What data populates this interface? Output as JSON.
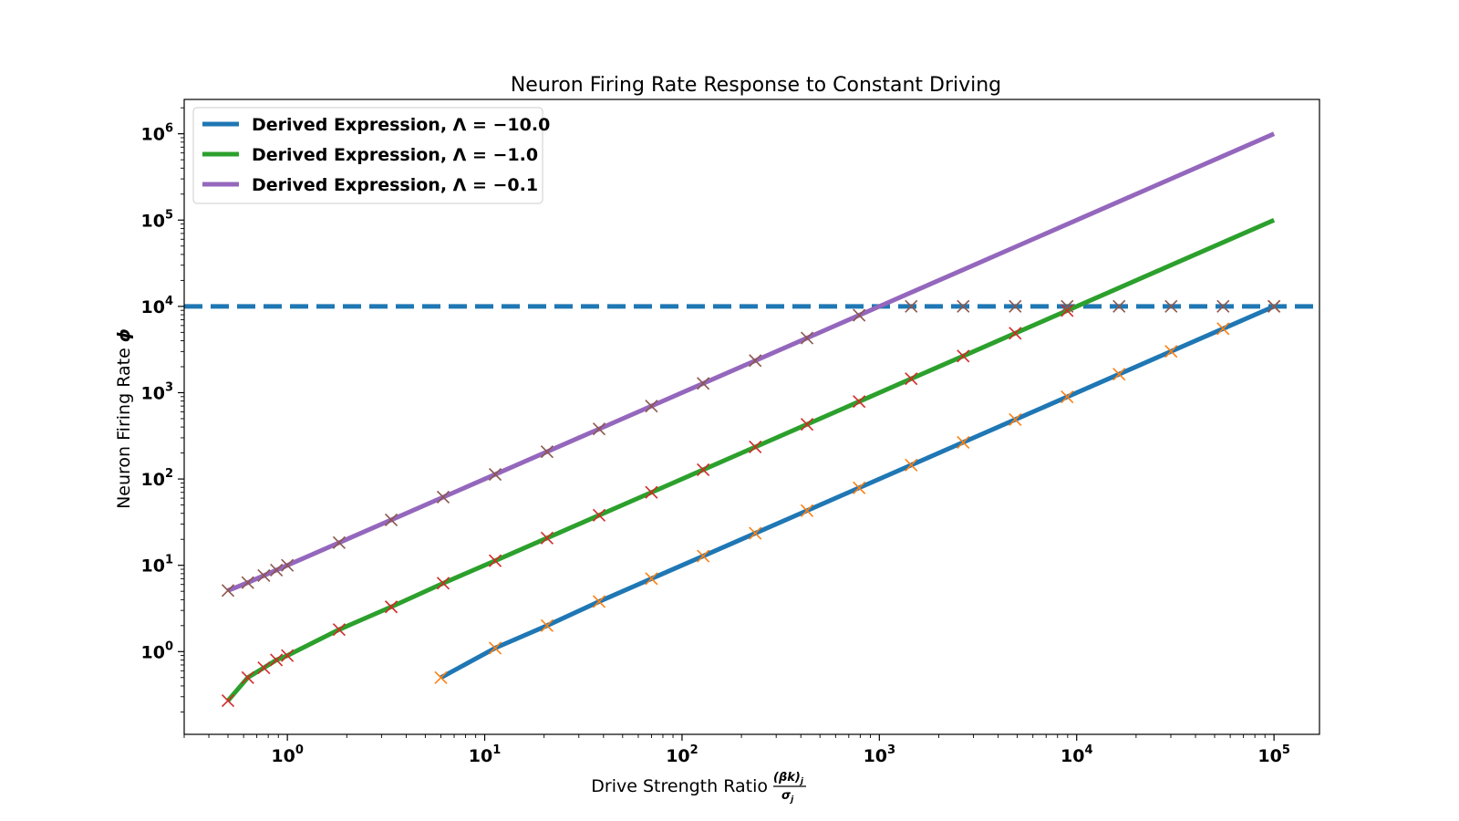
{
  "chart_data": {
    "type": "line",
    "title": "Neuron Firing Rate Response to Constant Driving",
    "xlabel": "Drive Strength Ratio",
    "xlabel_fraction": {
      "numerator": "(βk)",
      "numerator_sub": "j",
      "denominator": "σ",
      "denominator_sub": "j"
    },
    "ylabel": "Neuron Firing Rate",
    "ylabel_symbol": "ϕ",
    "xscale": "log",
    "yscale": "log",
    "xlim": [
      0.3,
      170000
    ],
    "ylim": [
      0.11,
      2500000
    ],
    "xticks": [
      {
        "base": "10",
        "exp": "0",
        "value": 1
      },
      {
        "base": "10",
        "exp": "1",
        "value": 10
      },
      {
        "base": "10",
        "exp": "2",
        "value": 100
      },
      {
        "base": "10",
        "exp": "3",
        "value": 1000
      },
      {
        "base": "10",
        "exp": "4",
        "value": 10000
      },
      {
        "base": "10",
        "exp": "5",
        "value": 100000
      }
    ],
    "yticks": [
      {
        "base": "10",
        "exp": "0",
        "value": 1
      },
      {
        "base": "10",
        "exp": "1",
        "value": 10
      },
      {
        "base": "10",
        "exp": "2",
        "value": 100
      },
      {
        "base": "10",
        "exp": "3",
        "value": 1000
      },
      {
        "base": "10",
        "exp": "4",
        "value": 10000
      },
      {
        "base": "10",
        "exp": "5",
        "value": 100000
      },
      {
        "base": "10",
        "exp": "6",
        "value": 1000000
      }
    ],
    "legend_position": "upper-left",
    "grid": false,
    "threshold_line": {
      "y": 10000,
      "style": "dashed",
      "color": "#1f77b4"
    },
    "series": [
      {
        "name": "Derived Expression, Λ = −10.0",
        "color": "#1f77b4",
        "marker_color": "#ff7f0e",
        "points": [
          [
            6,
            0.5
          ],
          [
            11.3,
            1.1
          ],
          [
            20.7,
            2.0
          ],
          [
            38,
            3.8
          ],
          [
            70,
            7.0
          ],
          [
            128,
            12.8
          ],
          [
            235,
            23.5
          ],
          [
            430,
            43
          ],
          [
            790,
            79
          ],
          [
            1450,
            145
          ],
          [
            2660,
            266
          ],
          [
            4880,
            488
          ],
          [
            8950,
            895
          ],
          [
            16400,
            1640
          ],
          [
            30100,
            3010
          ],
          [
            55200,
            5520
          ],
          [
            100000,
            10000
          ]
        ],
        "marker_points": [
          [
            6,
            0.5
          ],
          [
            11.3,
            1.1
          ],
          [
            20.7,
            2.0
          ],
          [
            38,
            3.8
          ],
          [
            70,
            7.0
          ],
          [
            128,
            12.8
          ],
          [
            235,
            23.5
          ],
          [
            430,
            43
          ],
          [
            790,
            79
          ],
          [
            1450,
            145
          ],
          [
            2660,
            266
          ],
          [
            4880,
            488
          ],
          [
            8950,
            895
          ],
          [
            16400,
            1640
          ],
          [
            30100,
            3010
          ],
          [
            55200,
            5520
          ],
          [
            100000,
            10000
          ]
        ]
      },
      {
        "name": "Derived Expression, Λ = −1.0",
        "color": "#2ca02c",
        "marker_color": "#d62728",
        "points": [
          [
            0.5,
            0.27
          ],
          [
            0.63,
            0.5
          ],
          [
            0.76,
            0.65
          ],
          [
            0.88,
            0.8
          ],
          [
            1.0,
            0.9
          ],
          [
            1.83,
            1.8
          ],
          [
            3.36,
            3.3
          ],
          [
            6.16,
            6.2
          ],
          [
            11.3,
            11.3
          ],
          [
            20.7,
            20.7
          ],
          [
            38,
            38
          ],
          [
            70,
            70
          ],
          [
            128,
            128
          ],
          [
            235,
            235
          ],
          [
            430,
            430
          ],
          [
            790,
            790
          ],
          [
            1450,
            1450
          ],
          [
            2660,
            2660
          ],
          [
            4880,
            4880
          ],
          [
            8950,
            8950
          ],
          [
            16400,
            16400
          ],
          [
            30100,
            30100
          ],
          [
            55200,
            55200
          ],
          [
            100000,
            100000
          ]
        ],
        "marker_points": [
          [
            0.5,
            0.27
          ],
          [
            0.63,
            0.5
          ],
          [
            0.76,
            0.65
          ],
          [
            0.88,
            0.8
          ],
          [
            1.0,
            0.9
          ],
          [
            1.83,
            1.8
          ],
          [
            3.36,
            3.3
          ],
          [
            6.16,
            6.2
          ],
          [
            11.3,
            11.3
          ],
          [
            20.7,
            20.7
          ],
          [
            38,
            38
          ],
          [
            70,
            70
          ],
          [
            128,
            128
          ],
          [
            235,
            235
          ],
          [
            430,
            430
          ],
          [
            790,
            790
          ],
          [
            1450,
            1450
          ],
          [
            2660,
            2660
          ],
          [
            4880,
            4880
          ],
          [
            8950,
            8950
          ]
        ]
      },
      {
        "name": "Derived Expression, Λ = −0.1",
        "color": "#9467bd",
        "marker_color": "#8c564b",
        "points": [
          [
            0.5,
            5.1
          ],
          [
            0.63,
            6.3
          ],
          [
            0.76,
            7.6
          ],
          [
            0.88,
            8.8
          ],
          [
            1.0,
            10
          ],
          [
            1.83,
            18.3
          ],
          [
            3.36,
            33.6
          ],
          [
            6.16,
            61.6
          ],
          [
            11.3,
            113
          ],
          [
            20.7,
            207
          ],
          [
            38,
            380
          ],
          [
            70,
            700
          ],
          [
            128,
            1280
          ],
          [
            235,
            2350
          ],
          [
            430,
            4300
          ],
          [
            790,
            7900
          ],
          [
            1000,
            10000
          ],
          [
            1450,
            14500
          ],
          [
            2660,
            26600
          ],
          [
            4880,
            48800
          ],
          [
            8950,
            89500
          ],
          [
            16400,
            164000
          ],
          [
            30100,
            301000
          ],
          [
            55200,
            552000
          ],
          [
            100000,
            1000000
          ]
        ],
        "marker_points": [
          [
            0.5,
            5.1
          ],
          [
            0.63,
            6.3
          ],
          [
            0.76,
            7.6
          ],
          [
            0.88,
            8.8
          ],
          [
            1.0,
            10
          ],
          [
            1.83,
            18.3
          ],
          [
            3.36,
            33.6
          ],
          [
            6.16,
            61.6
          ],
          [
            11.3,
            113
          ],
          [
            20.7,
            207
          ],
          [
            38,
            380
          ],
          [
            70,
            700
          ],
          [
            128,
            1280
          ],
          [
            235,
            2350
          ],
          [
            430,
            4300
          ],
          [
            790,
            7900
          ],
          [
            1450,
            10000
          ],
          [
            2660,
            10000
          ],
          [
            4880,
            10000
          ],
          [
            8950,
            10000
          ],
          [
            16400,
            10000
          ],
          [
            30100,
            10000
          ],
          [
            55200,
            10000
          ],
          [
            100000,
            10000
          ]
        ]
      }
    ]
  }
}
